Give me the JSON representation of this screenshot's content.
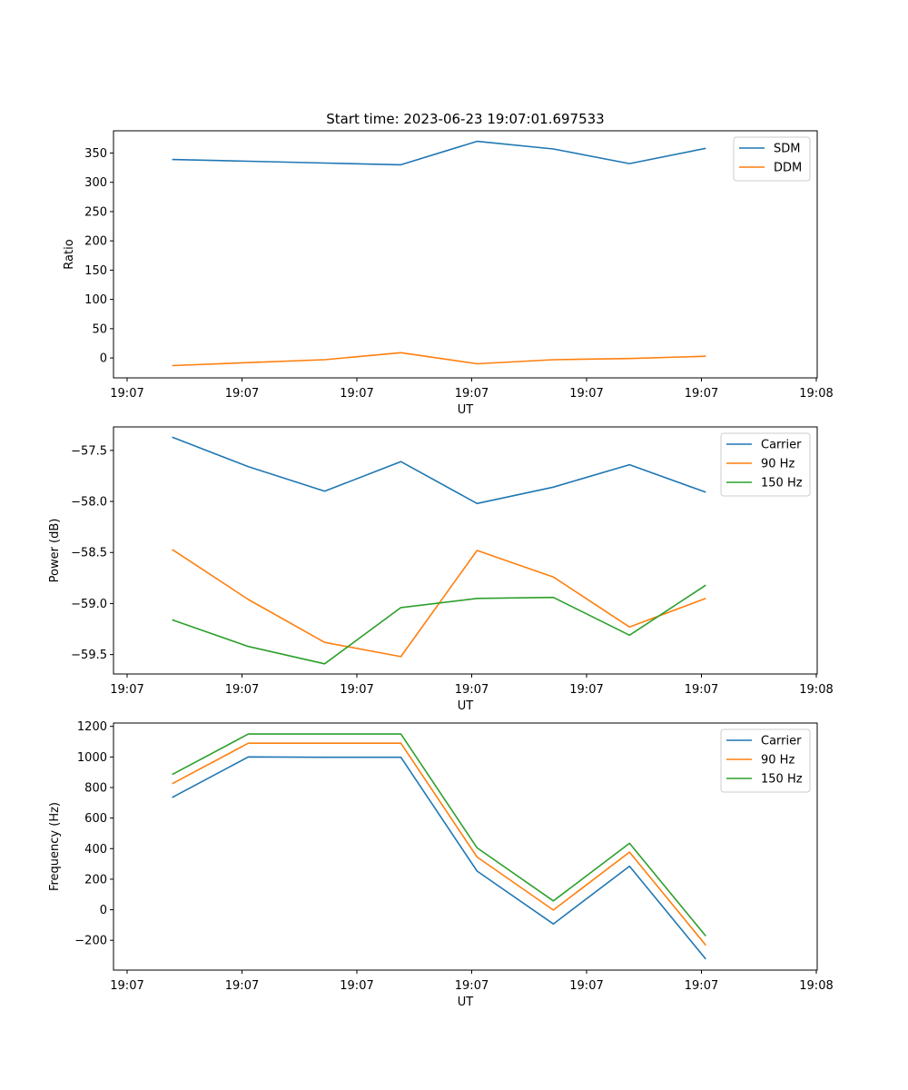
{
  "figure_title": "Start time: 2023-06-23 19:07:01.697533",
  "chart_data": [
    {
      "type": "line",
      "title": "Start time: 2023-06-23 19:07:01.697533",
      "xlabel": "UT",
      "ylabel": "Ratio",
      "x_tick_labels": [
        "19:07",
        "19:07",
        "19:07",
        "19:07",
        "19:07",
        "19:07",
        "19:08"
      ],
      "xlim": [
        0,
        12
      ],
      "x": [
        1,
        2.3,
        3.6,
        4.9,
        6.2,
        7.5,
        8.8,
        10.1
      ],
      "ylim": [
        -34,
        388
      ],
      "yticks": [
        0,
        50,
        100,
        150,
        200,
        250,
        300,
        350
      ],
      "legend_position": "top-right",
      "series": [
        {
          "name": "SDM",
          "color": "#1f77b4",
          "values": [
            339,
            336,
            333,
            330,
            370,
            357,
            332,
            358
          ]
        },
        {
          "name": "DDM",
          "color": "#ff7f0e",
          "values": [
            -13,
            -8,
            -3,
            9,
            -10,
            -3,
            -1,
            3
          ]
        }
      ]
    },
    {
      "type": "line",
      "xlabel": "UT",
      "ylabel": "Power (dB)",
      "x_tick_labels": [
        "19:07",
        "19:07",
        "19:07",
        "19:07",
        "19:07",
        "19:07",
        "19:08"
      ],
      "xlim": [
        0,
        12
      ],
      "x": [
        1,
        2.3,
        3.6,
        4.9,
        6.2,
        7.5,
        8.8,
        10.1
      ],
      "ylim": [
        -59.69,
        -57.27
      ],
      "yticks": [
        -59.5,
        -59.0,
        -58.5,
        -58.0,
        -57.5
      ],
      "ytick_labels": [
        "−59.5",
        "−59.0",
        "−58.5",
        "−58.0",
        "−57.5"
      ],
      "legend_position": "top-right",
      "series": [
        {
          "name": "Carrier",
          "color": "#1f77b4",
          "values": [
            -57.37,
            -57.66,
            -57.9,
            -57.61,
            -58.02,
            -57.86,
            -57.64,
            -57.91
          ]
        },
        {
          "name": "90 Hz",
          "color": "#ff7f0e",
          "values": [
            -58.47,
            -58.96,
            -59.38,
            -59.52,
            -58.48,
            -58.74,
            -59.23,
            -58.95
          ]
        },
        {
          "name": "150 Hz",
          "color": "#2ca02c",
          "values": [
            -59.16,
            -59.42,
            -59.59,
            -59.04,
            -58.95,
            -58.94,
            -59.31,
            -58.82
          ]
        }
      ]
    },
    {
      "type": "line",
      "xlabel": "UT",
      "ylabel": "Frequency (Hz)",
      "x_tick_labels": [
        "19:07",
        "19:07",
        "19:07",
        "19:07",
        "19:07",
        "19:07",
        "19:08"
      ],
      "xlim": [
        0,
        12
      ],
      "x": [
        1,
        2.3,
        3.6,
        4.9,
        6.2,
        7.5,
        8.8,
        10.1
      ],
      "ylim": [
        -395,
        1222
      ],
      "yticks": [
        -200,
        0,
        200,
        400,
        600,
        800,
        1000,
        1200
      ],
      "ytick_labels": [
        "−200",
        "0",
        "200",
        "400",
        "600",
        "800",
        "1000",
        "1200"
      ],
      "legend_position": "top-right",
      "series": [
        {
          "name": "Carrier",
          "color": "#1f77b4",
          "values": [
            735,
            1000,
            998,
            998,
            253,
            -93,
            285,
            -323
          ]
        },
        {
          "name": "90 Hz",
          "color": "#ff7f0e",
          "values": [
            825,
            1090,
            1090,
            1090,
            345,
            -2,
            377,
            -232
          ]
        },
        {
          "name": "150 Hz",
          "color": "#2ca02c",
          "values": [
            885,
            1150,
            1150,
            1150,
            405,
            58,
            435,
            -172
          ]
        }
      ]
    }
  ]
}
